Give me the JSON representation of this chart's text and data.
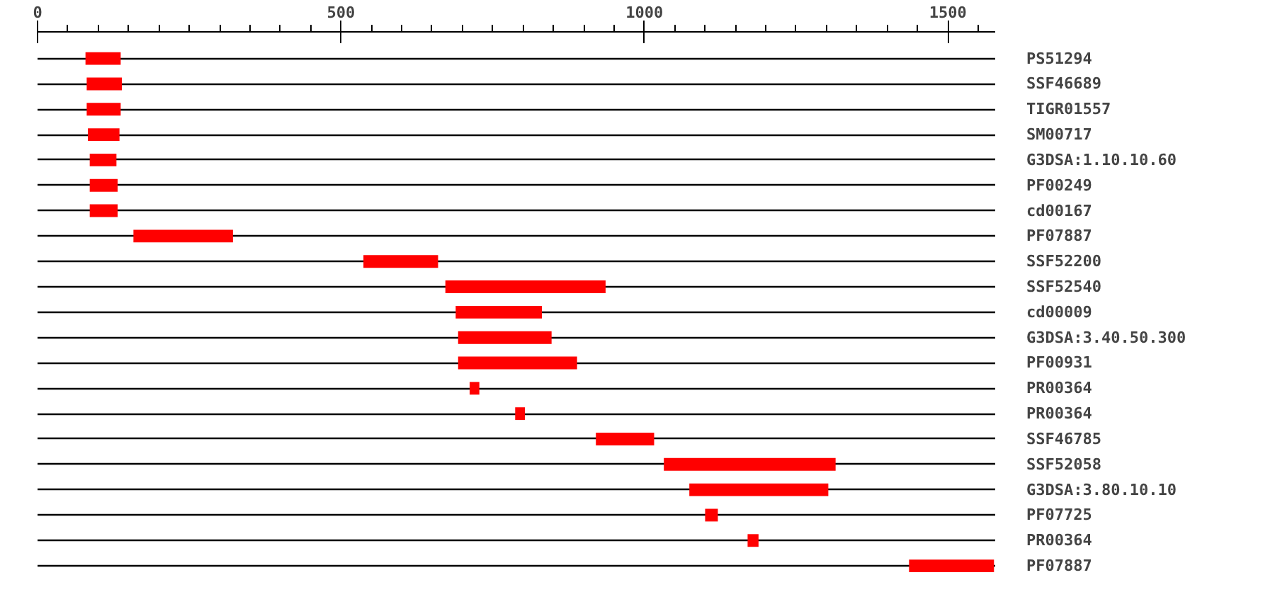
{
  "chart_data": {
    "type": "bar",
    "orientation": "horizontal",
    "color": "#ff0000",
    "grid": "y",
    "categories": [
      "PS51294",
      "SSF46689",
      "TIGR01557",
      "SM00717",
      "G3DSA:1.10.10.60",
      "PF00249",
      "cd00167",
      "PF07887",
      "SSF52200",
      "SSF52540",
      "cd00009",
      "G3DSA:3.40.50.300",
      "PF00931",
      "PR00364",
      "PR00364",
      "SSF46785",
      "SSF52058",
      "G3DSA:3.80.10.10",
      "PF07725",
      "PR00364",
      "PF07887"
    ],
    "base": [
      79,
      81,
      81,
      83,
      86,
      86,
      86,
      158,
      537,
      672,
      689,
      693,
      693,
      712,
      787,
      920,
      1032,
      1074,
      1100,
      1170,
      1436
    ],
    "values": [
      58,
      58,
      56,
      52,
      44,
      46,
      46,
      164,
      123,
      264,
      142,
      154,
      196,
      16,
      16,
      96,
      283,
      229,
      21,
      18,
      140
    ],
    "xlim": [
      0,
      1578
    ],
    "xticks": [
      0,
      {
        "value": 50,
        "label": null
      },
      {
        "value": 100,
        "label": null
      },
      {
        "value": 150,
        "label": null
      },
      {
        "value": 200,
        "label": null
      },
      {
        "value": 250,
        "label": null
      },
      {
        "value": 300,
        "label": null
      },
      {
        "value": 350,
        "label": null
      },
      {
        "value": 400,
        "label": null
      },
      {
        "value": 450,
        "label": null
      },
      500,
      {
        "value": 550,
        "label": null
      },
      {
        "value": 600,
        "label": null
      },
      {
        "value": 650,
        "label": null
      },
      {
        "value": 700,
        "label": null
      },
      {
        "value": 750,
        "label": null
      },
      {
        "value": 800,
        "label": null
      },
      {
        "value": 850,
        "label": null
      },
      {
        "value": 900,
        "label": null
      },
      {
        "value": 950,
        "label": null
      },
      1000,
      {
        "value": 1050,
        "label": null
      },
      {
        "value": 1100,
        "label": null
      },
      {
        "value": 1150,
        "label": null
      },
      {
        "value": 1200,
        "label": null
      },
      {
        "value": 1250,
        "label": null
      },
      {
        "value": 1300,
        "label": null
      },
      {
        "value": 1350,
        "label": null
      },
      {
        "value": 1400,
        "label": null
      },
      {
        "value": 1450,
        "label": null
      },
      1500,
      {
        "value": 1550,
        "label": null
      }
    ]
  }
}
